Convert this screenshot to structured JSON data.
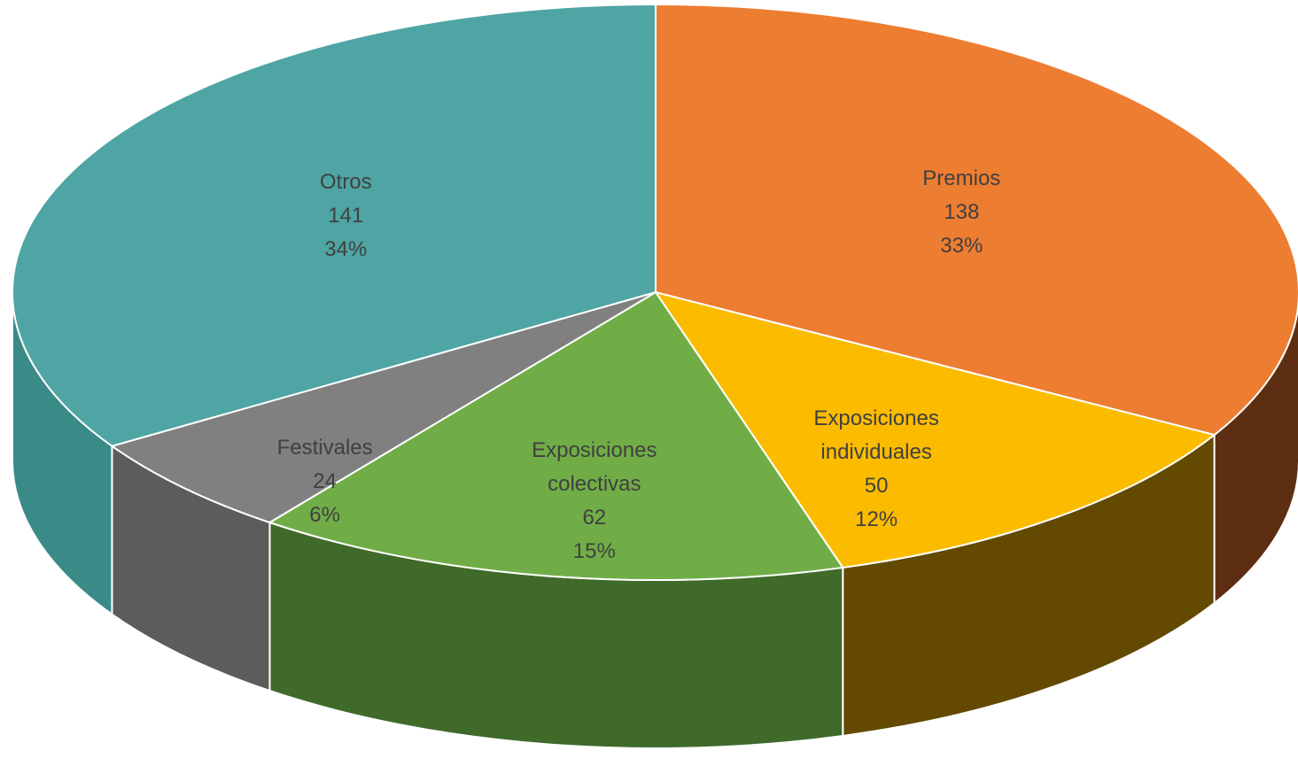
{
  "chart_data": {
    "type": "pie3d",
    "categories": [
      "Premios",
      "Exposiciones individuales",
      "Exposiciones colectivas",
      "Festivales",
      "Otros"
    ],
    "values": [
      138,
      50,
      62,
      24,
      141
    ],
    "percent_labels": [
      "33%",
      "12%",
      "15%",
      "6%",
      "34%"
    ],
    "colors": [
      "#ED7D31",
      "#FBBC00",
      "#70AD47",
      "#808080",
      "#4EA5A3"
    ],
    "side_colors": [
      "#5E2E12",
      "#634A00",
      "#3F6A2A",
      "#5C5C5C",
      "#3A8A88"
    ]
  }
}
